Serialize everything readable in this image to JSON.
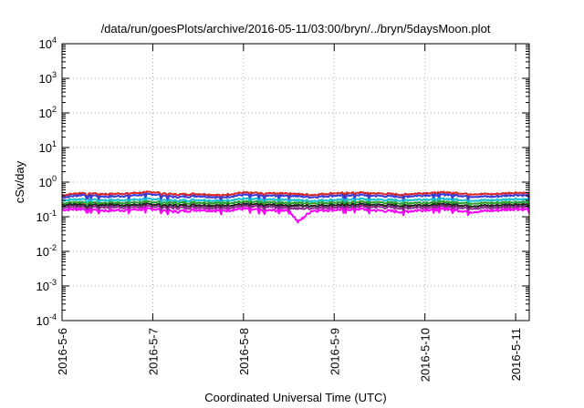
{
  "chart_data": {
    "type": "line",
    "title": "/data/run/goesPlots/archive/2016-05-11/03:00/bryn/../bryn/5daysMoon.plot",
    "xlabel": "Coordinated Universal Time (UTC)",
    "ylabel": "cSv/day",
    "yscale": "log",
    "ylim": [
      0.0001,
      10000
    ],
    "xlim": [
      0,
      5.15
    ],
    "grid": true,
    "yticks": [
      {
        "base": "10",
        "exp": "-4",
        "value": 0.0001
      },
      {
        "base": "10",
        "exp": "-3",
        "value": 0.001
      },
      {
        "base": "10",
        "exp": "-2",
        "value": 0.01
      },
      {
        "base": "10",
        "exp": "-1",
        "value": 0.1
      },
      {
        "base": "10",
        "exp": "0",
        "value": 1
      },
      {
        "base": "10",
        "exp": "1",
        "value": 10
      },
      {
        "base": "10",
        "exp": "2",
        "value": 100
      },
      {
        "base": "10",
        "exp": "3",
        "value": 1000
      },
      {
        "base": "10",
        "exp": "4",
        "value": 10000
      }
    ],
    "xticks": [
      {
        "label": "2016-5-6",
        "value": 0
      },
      {
        "label": "2016-5-7",
        "value": 1
      },
      {
        "label": "2016-5-8",
        "value": 2
      },
      {
        "label": "2016-5-9",
        "value": 3
      },
      {
        "label": "2016-5-10",
        "value": 4
      },
      {
        "label": "2016-5-11",
        "value": 5
      }
    ],
    "x": [
      0.0,
      0.25,
      0.5,
      0.75,
      1.0,
      1.25,
      1.5,
      1.75,
      2.0,
      2.25,
      2.5,
      2.6,
      2.75,
      3.0,
      3.25,
      3.5,
      3.75,
      4.0,
      4.25,
      4.5,
      4.75,
      5.0,
      5.15
    ],
    "series": [
      {
        "color": "#d62728",
        "values": [
          0.42,
          0.5,
          0.45,
          0.48,
          0.52,
          0.44,
          0.46,
          0.42,
          0.5,
          0.47,
          0.49,
          0.45,
          0.43,
          0.48,
          0.5,
          0.47,
          0.44,
          0.49,
          0.51,
          0.46,
          0.45,
          0.5,
          0.48
        ]
      },
      {
        "color": "#3b3bd6",
        "values": [
          0.36,
          0.44,
          0.38,
          0.41,
          0.45,
          0.37,
          0.4,
          0.36,
          0.43,
          0.4,
          0.42,
          0.39,
          0.37,
          0.41,
          0.43,
          0.4,
          0.38,
          0.42,
          0.44,
          0.39,
          0.38,
          0.43,
          0.41
        ]
      },
      {
        "color": "#17becf",
        "values": [
          0.3,
          0.33,
          0.3,
          0.31,
          0.33,
          0.29,
          0.31,
          0.29,
          0.33,
          0.31,
          0.32,
          0.3,
          0.29,
          0.31,
          0.33,
          0.31,
          0.3,
          0.32,
          0.33,
          0.3,
          0.3,
          0.33,
          0.31
        ]
      },
      {
        "color": "#2ca02c",
        "values": [
          0.25,
          0.27,
          0.25,
          0.26,
          0.27,
          0.25,
          0.26,
          0.25,
          0.27,
          0.26,
          0.26,
          0.25,
          0.25,
          0.26,
          0.27,
          0.26,
          0.25,
          0.26,
          0.27,
          0.25,
          0.25,
          0.27,
          0.26
        ]
      },
      {
        "color": "#222222",
        "values": [
          0.22,
          0.23,
          0.22,
          0.22,
          0.23,
          0.21,
          0.22,
          0.21,
          0.23,
          0.22,
          0.22,
          0.21,
          0.21,
          0.22,
          0.23,
          0.22,
          0.21,
          0.22,
          0.23,
          0.21,
          0.21,
          0.23,
          0.22
        ]
      },
      {
        "color": "#8c2d8c",
        "values": [
          0.19,
          0.2,
          0.19,
          0.19,
          0.2,
          0.18,
          0.19,
          0.18,
          0.2,
          0.19,
          0.19,
          0.17,
          0.18,
          0.19,
          0.2,
          0.19,
          0.18,
          0.19,
          0.2,
          0.18,
          0.18,
          0.2,
          0.19
        ]
      },
      {
        "color": "#ff00ff",
        "values": [
          0.16,
          0.17,
          0.15,
          0.16,
          0.17,
          0.14,
          0.16,
          0.15,
          0.17,
          0.15,
          0.16,
          0.07,
          0.15,
          0.16,
          0.17,
          0.15,
          0.14,
          0.16,
          0.17,
          0.14,
          0.15,
          0.17,
          0.16
        ]
      }
    ]
  }
}
